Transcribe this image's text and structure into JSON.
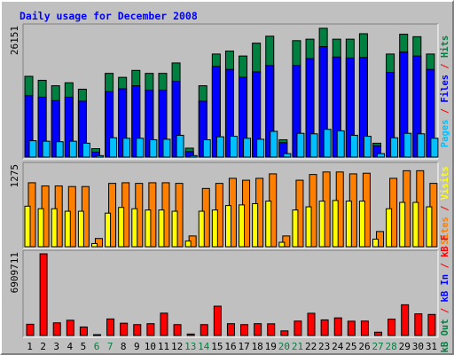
{
  "chart_data": {
    "type": "bar",
    "title": "Daily usage for December 2008",
    "categories": [
      "1",
      "2",
      "3",
      "4",
      "5",
      "6",
      "7",
      "8",
      "9",
      "10",
      "11",
      "12",
      "13",
      "14",
      "15",
      "16",
      "17",
      "18",
      "19",
      "20",
      "21",
      "22",
      "23",
      "24",
      "25",
      "26",
      "27",
      "28",
      "29",
      "30",
      "31"
    ],
    "weekend_days": [
      "6",
      "7",
      "13",
      "14",
      "20",
      "21",
      "27",
      "28"
    ],
    "panels": [
      {
        "max_label": "26151",
        "ymax": 26151,
        "series": [
          {
            "name": "Hits",
            "color": "#008040",
            "values": [
              16300,
              15500,
              14400,
              15000,
              13700,
              1700,
              16900,
              16100,
              17500,
              16900,
              16900,
              19000,
              1800,
              14400,
              20800,
              21400,
              20400,
              23000,
              24400,
              3500,
              23500,
              23800,
              26000,
              23800,
              23800,
              24900,
              2800,
              20800,
              24800,
              24300,
              20800
            ]
          },
          {
            "name": "Files",
            "color": "#0000ff",
            "values": [
              12400,
              12100,
              11400,
              12100,
              11300,
              1000,
              13200,
              13800,
              14400,
              13500,
              13500,
              15300,
              1100,
              11300,
              18300,
              17700,
              16100,
              17200,
              18500,
              2900,
              18500,
              19900,
              22300,
              20200,
              20000,
              20100,
              2300,
              17100,
              21200,
              20400,
              17700
            ]
          },
          {
            "name": "Pages",
            "color": "#00c0ff",
            "values": [
              3300,
              3200,
              3100,
              3200,
              2800,
              300,
              3900,
              3800,
              3800,
              3500,
              3600,
              4400,
              300,
              3500,
              4100,
              4200,
              3800,
              3600,
              5200,
              700,
              4800,
              4700,
              5600,
              5300,
              4400,
              4200,
              700,
              3900,
              4800,
              4700,
              3800
            ]
          }
        ],
        "side_labels": [
          {
            "text": "Hits",
            "color": "#008040"
          },
          {
            "text": " / ",
            "color": "#ff0000"
          },
          {
            "text": "Files",
            "color": "#0000ff"
          },
          {
            "text": " / ",
            "color": "#ff0000"
          },
          {
            "text": "Pages",
            "color": "#00c0ff"
          }
        ]
      },
      {
        "max_label": "1275",
        "ymax": 1275,
        "series": [
          {
            "name": "Visits",
            "color": "#ff8000",
            "values": [
              1010,
              960,
              960,
              950,
              950,
              130,
              1000,
              1010,
              1000,
              1010,
              1010,
              1000,
              170,
              920,
              1000,
              1080,
              1050,
              1080,
              1150,
              170,
              1050,
              1140,
              1180,
              1180,
              1150,
              1160,
              240,
              1080,
              1200,
              1200,
              1000
            ]
          },
          {
            "name": "Sites",
            "color": "#ffff00",
            "values": [
              640,
              600,
              600,
              560,
              560,
              50,
              530,
              620,
              600,
              580,
              580,
              560,
              90,
              560,
              580,
              650,
              660,
              680,
              720,
              70,
              580,
              630,
              720,
              730,
              720,
              720,
              120,
              600,
              700,
              700,
              630
            ]
          }
        ],
        "side_labels": [
          {
            "text": "Visits",
            "color": "#ffff00"
          },
          {
            "text": " / ",
            "color": "#ff0000"
          },
          {
            "text": "Sites",
            "color": "#ff8000"
          }
        ]
      },
      {
        "max_label": "6909711",
        "ymax": 6909711,
        "series": [
          {
            "name": "kB F",
            "color": "#ff0000",
            "values": [
              950000,
              6909711,
              1070000,
              1290000,
              720000,
              70000,
              1400000,
              1040000,
              920000,
              1000000,
              1890000,
              920000,
              120000,
              920000,
              2480000,
              1000000,
              920000,
              1000000,
              990000,
              390000,
              1220000,
              1880000,
              1320000,
              1490000,
              1210000,
              1220000,
              280000,
              1380000,
              2600000,
              1830000,
              1780000
            ]
          }
        ],
        "side_labels": [
          {
            "text": "kB F",
            "color": "#ff0000"
          },
          {
            "text": " / ",
            "color": "#ff0000"
          },
          {
            "text": "kB In",
            "color": "#0000ff"
          },
          {
            "text": " / ",
            "color": "#ff0000"
          },
          {
            "text": "kB Out",
            "color": "#008040"
          }
        ]
      }
    ]
  }
}
